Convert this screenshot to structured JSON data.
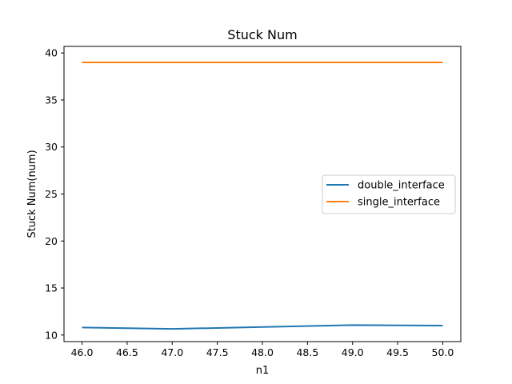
{
  "chart_data": {
    "type": "line",
    "title": "Stuck Num",
    "xlabel": "n1",
    "ylabel": "Stuck Num(num)",
    "x": [
      46,
      47,
      48,
      49,
      50
    ],
    "series": [
      {
        "name": "double_interface",
        "color": "#1f77b4",
        "values": [
          10.8,
          10.65,
          10.85,
          11.05,
          11.0
        ]
      },
      {
        "name": "single_interface",
        "color": "#ff7f0e",
        "values": [
          39,
          39,
          39,
          39,
          39
        ]
      }
    ],
    "xlim": [
      45.8,
      50.2
    ],
    "ylim": [
      9.3,
      40.7
    ],
    "xticks": [
      "46.0",
      "46.5",
      "47.0",
      "47.5",
      "48.0",
      "48.5",
      "49.0",
      "49.5",
      "50.0"
    ],
    "yticks": [
      "10",
      "15",
      "20",
      "25",
      "30",
      "35",
      "40"
    ],
    "grid": false,
    "legend_position": "center-right"
  }
}
